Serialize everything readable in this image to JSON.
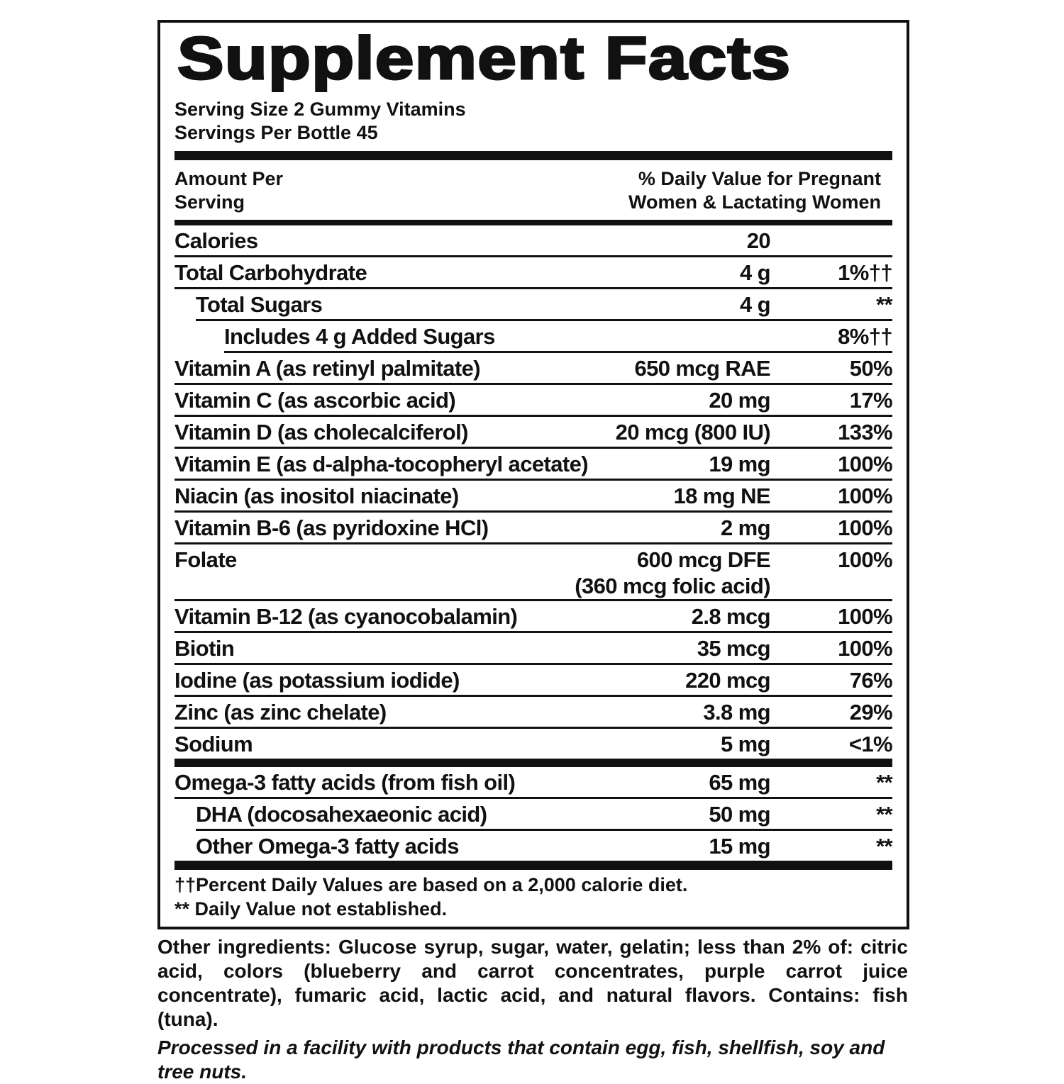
{
  "title": "Supplement Facts",
  "serving_size": "Serving Size 2 Gummy Vitamins",
  "servings_per": "Servings Per Bottle 45",
  "header": {
    "left1": "Amount Per",
    "left2": "Serving",
    "right1": "% Daily Value for Pregnant",
    "right2": "Women & Lactating Women"
  },
  "rows": [
    {
      "name": "Calories",
      "amount": "20",
      "dv": ""
    },
    {
      "name": "Total Carbohydrate",
      "amount": "4 g",
      "dv": "1%††"
    },
    {
      "name": "Total Sugars",
      "amount": "4 g",
      "dv": "**"
    },
    {
      "name": "Includes 4 g Added Sugars",
      "amount": "",
      "dv": "8%††"
    },
    {
      "name": "Vitamin A (as retinyl palmitate)",
      "amount": "650 mcg RAE",
      "dv": "50%"
    },
    {
      "name": "Vitamin C (as ascorbic acid)",
      "amount": "20 mg",
      "dv": "17%"
    },
    {
      "name": "Vitamin D (as cholecalciferol)",
      "amount": "20 mcg (800 IU)",
      "dv": "133%"
    },
    {
      "name": "Vitamin E (as d-alpha-tocopheryl acetate)",
      "amount": "19 mg",
      "dv": "100%"
    },
    {
      "name": "Niacin (as inositol niacinate)",
      "amount": "18 mg NE",
      "dv": "100%"
    },
    {
      "name": "Vitamin B-6 (as pyridoxine HCl)",
      "amount": "2 mg",
      "dv": "100%"
    },
    {
      "name": "Folate",
      "amount": "600 mcg DFE",
      "amount2": "(360 mcg folic acid)",
      "dv": "100%"
    },
    {
      "name": "Vitamin B-12 (as cyanocobalamin)",
      "amount": "2.8 mcg",
      "dv": "100%"
    },
    {
      "name": "Biotin",
      "amount": "35 mcg",
      "dv": "100%"
    },
    {
      "name": "Iodine (as potassium iodide)",
      "amount": "220 mcg",
      "dv": "76%"
    },
    {
      "name": "Zinc (as zinc chelate)",
      "amount": "3.8 mg",
      "dv": "29%"
    },
    {
      "name": "Sodium",
      "amount": "5 mg",
      "dv": "<1%"
    },
    {
      "name": "Omega-3 fatty acids (from fish oil)",
      "amount": "65 mg",
      "dv": "**"
    },
    {
      "name": "DHA (docosahexaeonic acid)",
      "amount": "50 mg",
      "dv": "**"
    },
    {
      "name": "Other Omega-3 fatty acids",
      "amount": "15 mg",
      "dv": "**"
    }
  ],
  "footnotes": [
    "††Percent Daily Values are based on a 2,000 calorie diet.",
    "** Daily Value not established."
  ],
  "other_ingredients_label": "Other ingredients:",
  "other_ingredients": " Glucose syrup, sugar, water, gelatin; less than 2% of: citric acid, colors (blueberry and carrot concentrates, purple carrot juice concentrate), fumaric acid, lactic acid, and natural flavors.",
  "contains_label": " Contains:",
  "contains": " fish (tuna).",
  "facility": "Processed in a facility with products that contain egg, fish, shellfish, soy and tree nuts."
}
